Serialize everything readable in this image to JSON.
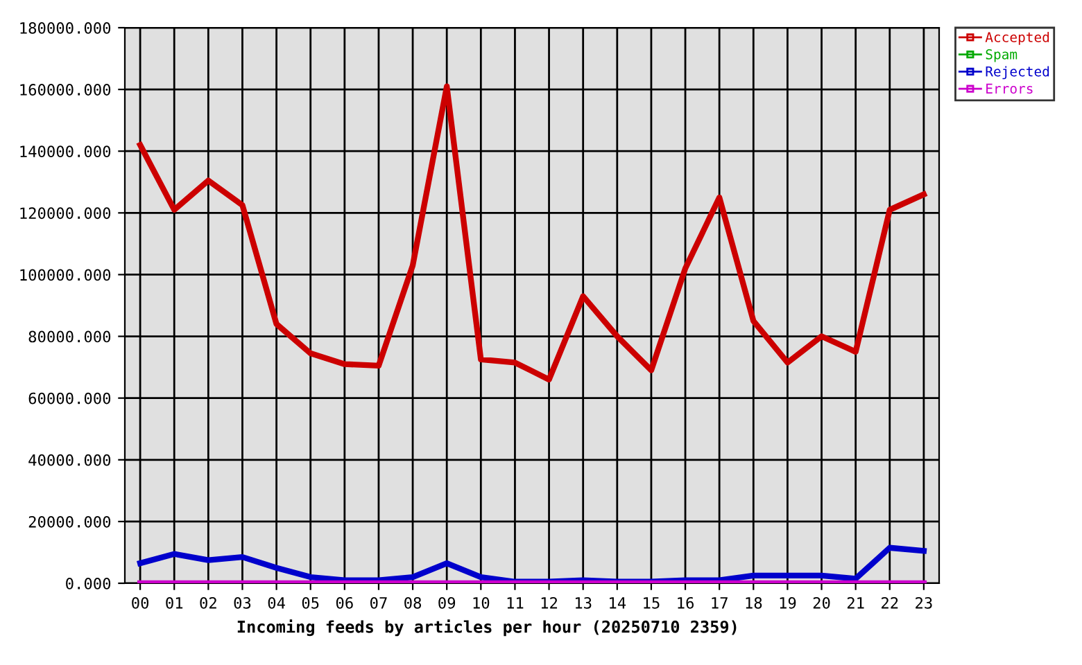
{
  "chart_data": {
    "type": "line",
    "xlabel": "Incoming feeds by articles per hour (20250710 2359)",
    "categories": [
      "00",
      "01",
      "02",
      "03",
      "04",
      "05",
      "06",
      "07",
      "08",
      "09",
      "10",
      "11",
      "12",
      "13",
      "14",
      "15",
      "16",
      "17",
      "18",
      "19",
      "20",
      "21",
      "22",
      "23"
    ],
    "series": [
      {
        "name": "Accepted",
        "color": "#cc0000",
        "values": [
          142000,
          121000,
          130500,
          122500,
          84000,
          74500,
          71000,
          70500,
          103000,
          161000,
          72500,
          71500,
          66000,
          93000,
          80000,
          69000,
          102000,
          125000,
          85000,
          71500,
          80000,
          75000,
          121000,
          126000
        ]
      },
      {
        "name": "Spam",
        "color": "#00aa00",
        "values": [
          null,
          null,
          null,
          null,
          null,
          null,
          null,
          null,
          null,
          null,
          null,
          null,
          null,
          null,
          null,
          null,
          null,
          null,
          null,
          null,
          null,
          null,
          null,
          null
        ]
      },
      {
        "name": "Rejected",
        "color": "#0000cc",
        "values": [
          6500,
          9500,
          7500,
          8500,
          5000,
          2000,
          1000,
          1000,
          2000,
          6500,
          2000,
          500,
          500,
          1000,
          500,
          500,
          1000,
          1000,
          2500,
          2500,
          2500,
          1500,
          11500,
          10500
        ]
      },
      {
        "name": "Errors",
        "color": "#cc00cc",
        "values": [
          0,
          0,
          0,
          0,
          0,
          0,
          0,
          0,
          0,
          0,
          0,
          0,
          0,
          0,
          0,
          0,
          0,
          0,
          0,
          0,
          0,
          0,
          0,
          0
        ]
      }
    ],
    "ylim": [
      0,
      180000
    ],
    "yticks": [
      {
        "value": 0,
        "label": "0.000"
      },
      {
        "value": 20000,
        "label": "20000.000"
      },
      {
        "value": 40000,
        "label": "40000.000"
      },
      {
        "value": 60000,
        "label": "60000.000"
      },
      {
        "value": 80000,
        "label": "80000.000"
      },
      {
        "value": 100000,
        "label": "100000.000"
      },
      {
        "value": 120000,
        "label": "120000.000"
      },
      {
        "value": 140000,
        "label": "140000.000"
      },
      {
        "value": 160000,
        "label": "160000.000"
      },
      {
        "value": 180000,
        "label": "180000.000"
      }
    ],
    "grid": true,
    "legend": "top right",
    "line_style": "solid"
  }
}
